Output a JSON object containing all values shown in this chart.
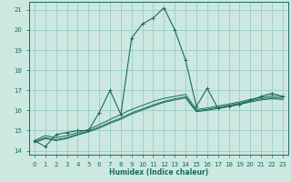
{
  "xlabel": "Humidex (Indice chaleur)",
  "bg_color": "#cce8e0",
  "grid_color": "#99cccc",
  "line_color": "#1a6b5a",
  "xlim": [
    -0.5,
    23.5
  ],
  "ylim": [
    13.8,
    21.4
  ],
  "yticks": [
    14,
    15,
    16,
    17,
    18,
    19,
    20,
    21
  ],
  "xticks": [
    0,
    1,
    2,
    3,
    4,
    5,
    6,
    7,
    8,
    9,
    10,
    11,
    12,
    13,
    14,
    15,
    16,
    17,
    18,
    19,
    20,
    21,
    22,
    23
  ],
  "main_series": [
    14.5,
    14.2,
    14.8,
    14.9,
    15.0,
    15.0,
    15.9,
    17.0,
    15.8,
    19.6,
    20.3,
    20.6,
    21.1,
    20.0,
    18.5,
    16.2,
    17.1,
    16.1,
    16.2,
    16.3,
    16.5,
    16.7,
    16.85,
    16.7
  ],
  "extra_series": [
    [
      14.5,
      14.75,
      14.65,
      14.75,
      14.9,
      15.05,
      15.3,
      15.55,
      15.8,
      16.05,
      16.25,
      16.45,
      16.6,
      16.7,
      16.8,
      16.05,
      16.12,
      16.22,
      16.32,
      16.42,
      16.55,
      16.65,
      16.72,
      16.68
    ],
    [
      14.45,
      14.65,
      14.55,
      14.65,
      14.82,
      14.98,
      15.18,
      15.42,
      15.62,
      15.88,
      16.08,
      16.28,
      16.45,
      16.58,
      16.68,
      15.98,
      16.05,
      16.15,
      16.25,
      16.36,
      16.48,
      16.58,
      16.64,
      16.6
    ],
    [
      14.4,
      14.6,
      14.5,
      14.6,
      14.78,
      14.93,
      15.12,
      15.36,
      15.56,
      15.82,
      16.02,
      16.22,
      16.4,
      16.52,
      16.62,
      15.94,
      16.0,
      16.1,
      16.2,
      16.3,
      16.42,
      16.52,
      16.58,
      16.54
    ]
  ]
}
